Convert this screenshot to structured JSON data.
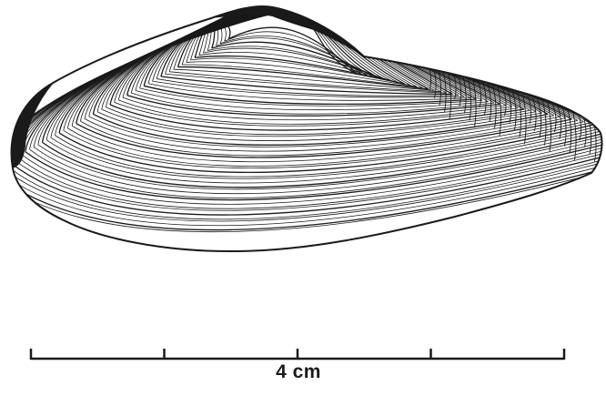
{
  "figure": {
    "subject_icon": "bivalve-shell-illustration",
    "ink_color": "#1a1a1a",
    "background_color": "#ffffff"
  },
  "scale_bar": {
    "label": "4 cm",
    "segments": 4
  }
}
